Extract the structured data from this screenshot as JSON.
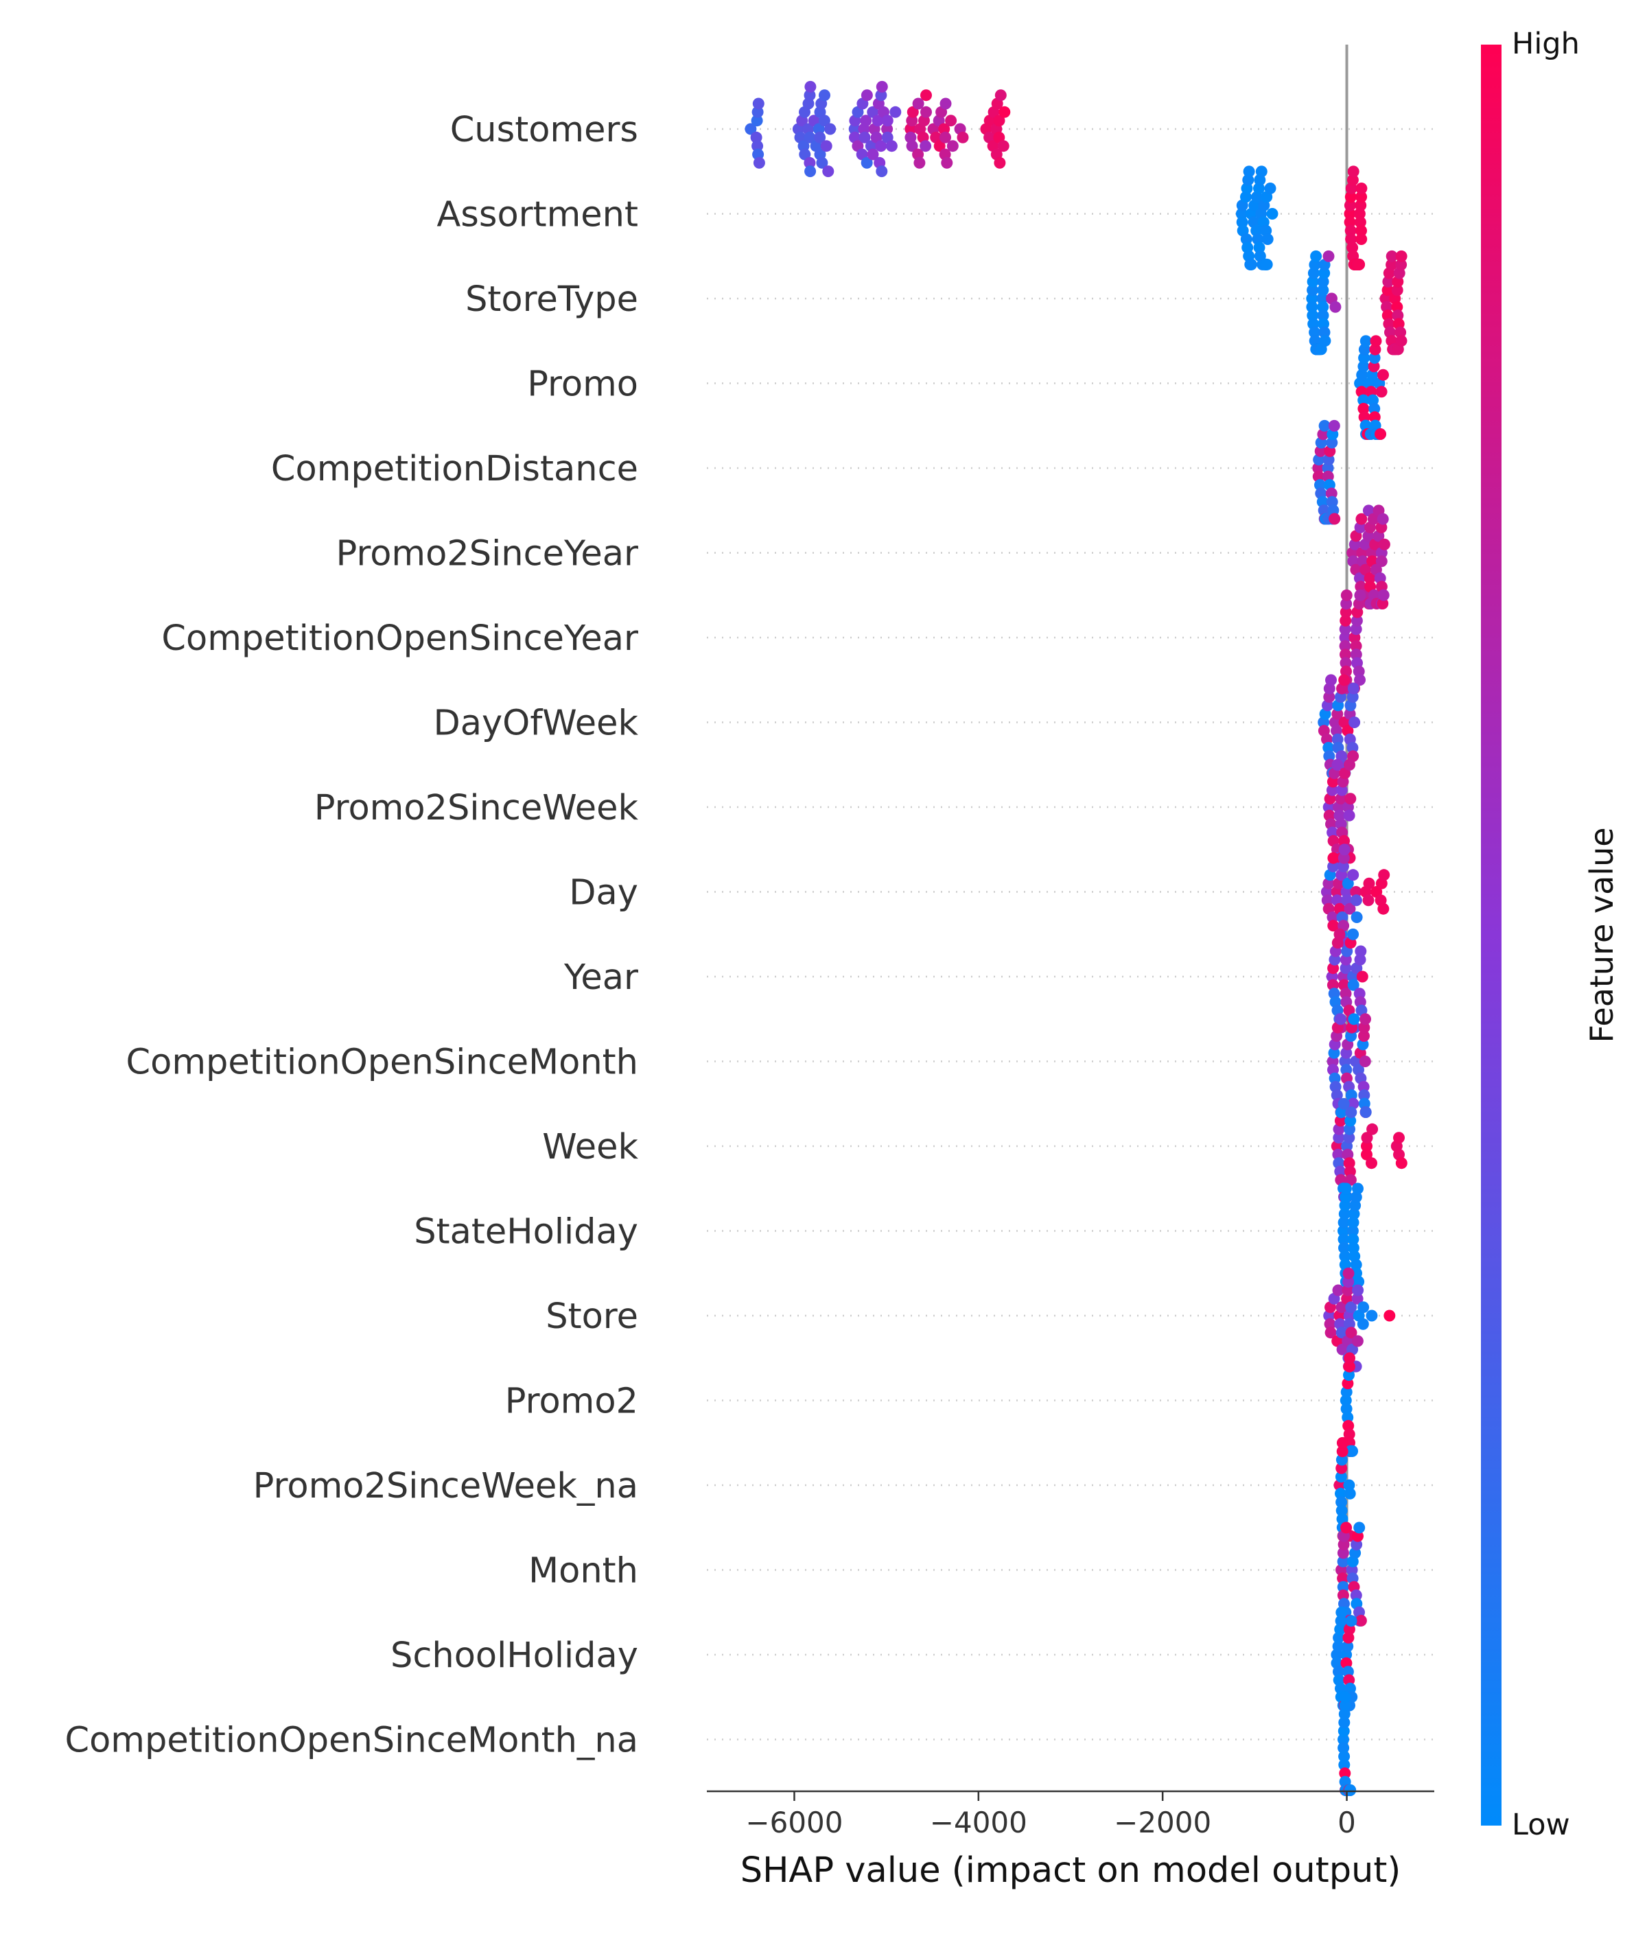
{
  "chart_data": {
    "type": "scatter",
    "subtype": "shap-beeswarm-summary",
    "title": "",
    "xlabel": "SHAP value (impact on model output)",
    "ylabel": "",
    "xlim": [
      -6950,
      950
    ],
    "x_ticks": [
      -6000,
      -4000,
      -2000,
      0
    ],
    "x_tick_labels": [
      "−6000",
      "−4000",
      "−2000",
      "0"
    ],
    "grid": false,
    "zero_line": 0,
    "colorbar": {
      "title": "Feature value",
      "high_label": "High",
      "low_label": "Low",
      "high_color": "#ff0052",
      "mid_color": "#8a37d8",
      "low_color": "#008bfb"
    },
    "features": [
      {
        "name": "Customers",
        "clusters": [
          {
            "range": [
              -6500,
              -6350
            ],
            "n": 8,
            "v": [
              0.4,
              0.18
            ]
          },
          {
            "range": [
              -6000,
              -5600
            ],
            "n": 26,
            "v": [
              0.22,
              0.45
            ]
          },
          {
            "range": [
              -5350,
              -4900
            ],
            "n": 30,
            "v": [
              0.2,
              0.62
            ]
          },
          {
            "range": [
              -4800,
              -4150
            ],
            "n": 28,
            "v": [
              0.58,
              0.95
            ]
          },
          {
            "range": [
              -3950,
              -3700
            ],
            "n": 14,
            "v": [
              0.85,
              1.0
            ]
          }
        ]
      },
      {
        "name": "Assortment",
        "clusters": [
          {
            "range": [
              -1150,
              -800
            ],
            "n": 40,
            "v": [
              0.0,
              0.04
            ]
          },
          {
            "range": [
              30,
              160
            ],
            "n": 38,
            "v": [
              0.92,
              1.0
            ]
          }
        ]
      },
      {
        "name": "StoreType",
        "clusters": [
          {
            "range": [
              -380,
              -230
            ],
            "n": 36,
            "v": [
              0.0,
              0.06
            ]
          },
          {
            "range": [
              -230,
              -120
            ],
            "n": 3,
            "v": [
              0.6,
              0.7
            ]
          },
          {
            "range": [
              420,
              600
            ],
            "n": 30,
            "v": [
              0.82,
              1.0
            ]
          }
        ]
      },
      {
        "name": "Promo",
        "clusters": [
          {
            "range": [
              140,
              420
            ],
            "n": 16,
            "v": [
              0.92,
              1.0
            ]
          },
          {
            "range": [
              140,
              380
            ],
            "n": 26,
            "v": [
              0.0,
              0.06
            ]
          }
        ]
      },
      {
        "name": "CompetitionDistance",
        "clusters": [
          {
            "range": [
              -330,
              -140
            ],
            "n": 22,
            "v": [
              0.0,
              0.25
            ]
          },
          {
            "range": [
              -330,
              -120
            ],
            "n": 10,
            "v": [
              0.55,
              0.95
            ]
          }
        ]
      },
      {
        "name": "Promo2SinceYear",
        "clusters": [
          {
            "range": [
              60,
              420
            ],
            "n": 42,
            "v": [
              0.55,
              0.95
            ]
          }
        ]
      },
      {
        "name": "CompetitionOpenSinceYear",
        "clusters": [
          {
            "range": [
              -20,
              160
            ],
            "n": 32,
            "v": [
              0.55,
              0.95
            ]
          }
        ]
      },
      {
        "name": "DayOfWeek",
        "clusters": [
          {
            "range": [
              -260,
              90
            ],
            "n": 36,
            "v": [
              0.0,
              1.0
            ]
          }
        ]
      },
      {
        "name": "Promo2SinceWeek",
        "clusters": [
          {
            "range": [
              -200,
              40
            ],
            "n": 32,
            "v": [
              0.45,
              0.95
            ]
          }
        ]
      },
      {
        "name": "Day",
        "clusters": [
          {
            "range": [
              -220,
              130
            ],
            "n": 34,
            "v": [
              0.0,
              1.0
            ]
          },
          {
            "range": [
              180,
              420
            ],
            "n": 8,
            "v": [
              0.9,
              1.0
            ]
          }
        ]
      },
      {
        "name": "Year",
        "clusters": [
          {
            "range": [
              -160,
              180
            ],
            "n": 36,
            "v": [
              0.0,
              1.0
            ]
          }
        ]
      },
      {
        "name": "CompetitionOpenSinceMonth",
        "clusters": [
          {
            "range": [
              -160,
              220
            ],
            "n": 38,
            "v": [
              0.0,
              1.0
            ]
          }
        ]
      },
      {
        "name": "Week",
        "clusters": [
          {
            "range": [
              -120,
              60
            ],
            "n": 30,
            "v": [
              0.0,
              1.0
            ]
          },
          {
            "range": [
              200,
              640
            ],
            "n": 9,
            "v": [
              0.9,
              1.0
            ]
          }
        ]
      },
      {
        "name": "StateHoliday",
        "clusters": [
          {
            "range": [
              -40,
              130
            ],
            "n": 46,
            "v": [
              0.0,
              0.04
            ]
          }
        ]
      },
      {
        "name": "Store",
        "clusters": [
          {
            "range": [
              -220,
              120
            ],
            "n": 38,
            "v": [
              0.3,
              1.0
            ]
          },
          {
            "range": [
              120,
              280
            ],
            "n": 4,
            "v": [
              0.0,
              0.06
            ]
          },
          {
            "range": [
              430,
              500
            ],
            "n": 1,
            "v": [
              1.0,
              1.0
            ]
          }
        ]
      },
      {
        "name": "Promo2",
        "clusters": [
          {
            "range": [
              -10,
              60
            ],
            "n": 12,
            "v": [
              0.0,
              0.04
            ]
          },
          {
            "range": [
              -10,
              60
            ],
            "n": 10,
            "v": [
              0.93,
              1.0
            ]
          }
        ]
      },
      {
        "name": "Promo2SinceWeek_na",
        "clusters": [
          {
            "range": [
              -80,
              40
            ],
            "n": 14,
            "v": [
              0.92,
              1.0
            ]
          },
          {
            "range": [
              -80,
              40
            ],
            "n": 14,
            "v": [
              0.0,
              0.05
            ]
          }
        ]
      },
      {
        "name": "Month",
        "clusters": [
          {
            "range": [
              -70,
              160
            ],
            "n": 32,
            "v": [
              0.0,
              1.0
            ]
          }
        ]
      },
      {
        "name": "SchoolHoliday",
        "clusters": [
          {
            "range": [
              -120,
              60
            ],
            "n": 26,
            "v": [
              0.0,
              0.06
            ]
          },
          {
            "range": [
              -40,
              40
            ],
            "n": 6,
            "v": [
              0.92,
              1.0
            ]
          }
        ]
      },
      {
        "name": "CompetitionOpenSinceMonth_na",
        "clusters": [
          {
            "range": [
              -40,
              40
            ],
            "n": 28,
            "v": [
              0.0,
              0.04
            ]
          },
          {
            "range": [
              -40,
              30
            ],
            "n": 3,
            "v": [
              0.95,
              1.0
            ]
          }
        ]
      }
    ]
  }
}
